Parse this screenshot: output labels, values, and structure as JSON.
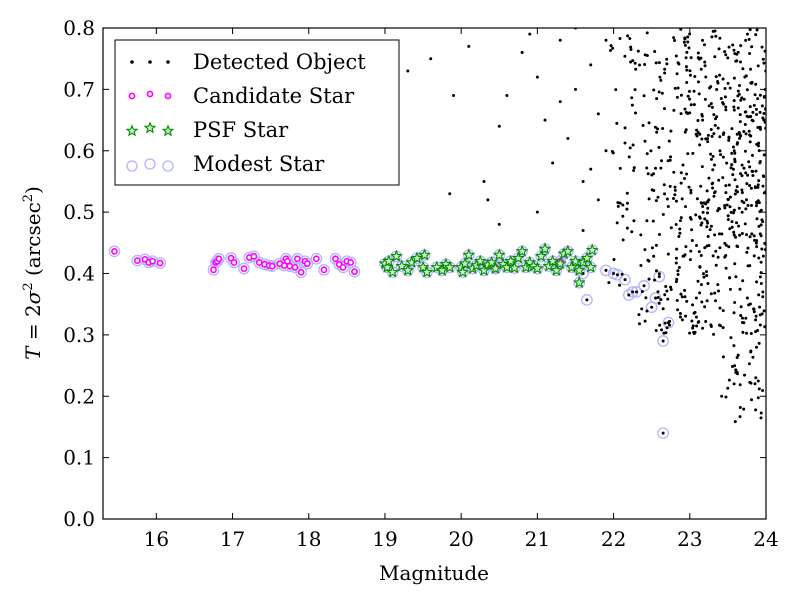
{
  "chart_data": {
    "type": "scatter",
    "xlabel": "Magnitude",
    "ylabel": {
      "prefix": "T",
      "eq": " = 2",
      "sigma": "σ",
      "sup": "2",
      "units_open": " (arcsec",
      "units_sup": "2",
      "units_close": ")"
    },
    "xlim": [
      15.3,
      24
    ],
    "ylim": [
      0.0,
      0.8
    ],
    "xticks": [
      "16",
      "17",
      "18",
      "19",
      "20",
      "21",
      "22",
      "23",
      "24"
    ],
    "yticks": [
      "0.0",
      "0.1",
      "0.2",
      "0.3",
      "0.4",
      "0.5",
      "0.6",
      "0.7",
      "0.8"
    ],
    "grid": false,
    "legend_position": "top-left",
    "legend": [
      {
        "label": "Detected Object",
        "marker": "dot",
        "color": "#000000"
      },
      {
        "label": "Candidate Star",
        "marker": "circle",
        "color": "#ff00ff"
      },
      {
        "label": "PSF Star",
        "marker": "star",
        "color": "#00aa00"
      },
      {
        "label": "Modest Star",
        "marker": "open-circle",
        "color": "#b3b3ff"
      }
    ],
    "series": {
      "detected_extra": [
        [
          20.4,
          0.81
        ],
        [
          20.6,
          0.69
        ],
        [
          20.8,
          0.76
        ],
        [
          20.9,
          0.79
        ],
        [
          21.0,
          0.72
        ],
        [
          21.1,
          0.65
        ],
        [
          21.3,
          0.78
        ],
        [
          21.4,
          0.62
        ],
        [
          21.5,
          0.7
        ],
        [
          21.6,
          0.55
        ],
        [
          21.7,
          0.74
        ],
        [
          21.7,
          0.57
        ],
        [
          21.8,
          0.66
        ],
        [
          21.9,
          0.6
        ],
        [
          21.9,
          0.78
        ],
        [
          21.2,
          0.58
        ],
        [
          21.5,
          0.8
        ],
        [
          20.5,
          0.48
        ],
        [
          20.1,
          0.77
        ],
        [
          19.9,
          0.69
        ],
        [
          19.6,
          0.75
        ],
        [
          20.3,
          0.55
        ],
        [
          20.35,
          0.52
        ],
        [
          19.85,
          0.53
        ],
        [
          19.3,
          0.73
        ],
        [
          20.5,
          0.64
        ],
        [
          21.0,
          0.5
        ],
        [
          21.3,
          0.68
        ],
        [
          21.8,
          0.52
        ],
        [
          21.6,
          0.47
        ]
      ],
      "candidate": [
        [
          15.45,
          0.436
        ],
        [
          15.75,
          0.421
        ],
        [
          15.85,
          0.423
        ],
        [
          15.9,
          0.418
        ],
        [
          15.95,
          0.42
        ],
        [
          16.05,
          0.417
        ],
        [
          16.75,
          0.406
        ],
        [
          16.78,
          0.418
        ],
        [
          16.8,
          0.42
        ],
        [
          16.82,
          0.424
        ],
        [
          16.98,
          0.425
        ],
        [
          17.02,
          0.418
        ],
        [
          17.15,
          0.408
        ],
        [
          17.22,
          0.426
        ],
        [
          17.28,
          0.428
        ],
        [
          17.35,
          0.418
        ],
        [
          17.42,
          0.415
        ],
        [
          17.48,
          0.413
        ],
        [
          17.52,
          0.412
        ],
        [
          17.62,
          0.416
        ],
        [
          17.68,
          0.413
        ],
        [
          17.7,
          0.424
        ],
        [
          17.72,
          0.42
        ],
        [
          17.75,
          0.412
        ],
        [
          17.82,
          0.41
        ],
        [
          17.85,
          0.424
        ],
        [
          17.9,
          0.402
        ],
        [
          17.95,
          0.42
        ],
        [
          17.98,
          0.416
        ],
        [
          18.1,
          0.424
        ],
        [
          18.2,
          0.406
        ],
        [
          18.35,
          0.424
        ],
        [
          18.4,
          0.415
        ],
        [
          18.45,
          0.41
        ],
        [
          18.5,
          0.42
        ],
        [
          18.55,
          0.418
        ],
        [
          18.6,
          0.403
        ],
        [
          20.45,
          0.41
        ],
        [
          21.3,
          0.42
        ]
      ],
      "modest_extra": [
        [
          21.6,
          0.4
        ],
        [
          21.9,
          0.405
        ],
        [
          22.0,
          0.4
        ],
        [
          22.05,
          0.398
        ],
        [
          22.15,
          0.39
        ],
        [
          22.2,
          0.365
        ],
        [
          22.25,
          0.37
        ],
        [
          22.3,
          0.37
        ],
        [
          22.4,
          0.38
        ],
        [
          22.5,
          0.345
        ],
        [
          22.55,
          0.36
        ],
        [
          21.65,
          0.357
        ],
        [
          22.6,
          0.395
        ],
        [
          22.65,
          0.29
        ],
        [
          22.72,
          0.32
        ],
        [
          22.65,
          0.14
        ]
      ],
      "psf": [
        [
          19.0,
          0.416
        ],
        [
          19.03,
          0.41
        ],
        [
          19.05,
          0.42
        ],
        [
          19.1,
          0.402
        ],
        [
          19.15,
          0.428
        ],
        [
          19.22,
          0.412
        ],
        [
          19.3,
          0.405
        ],
        [
          19.35,
          0.418
        ],
        [
          19.42,
          0.425
        ],
        [
          19.5,
          0.41
        ],
        [
          19.52,
          0.43
        ],
        [
          19.55,
          0.402
        ],
        [
          19.68,
          0.41
        ],
        [
          19.75,
          0.405
        ],
        [
          19.8,
          0.415
        ],
        [
          19.85,
          0.41
        ],
        [
          20.0,
          0.41
        ],
        [
          20.02,
          0.402
        ],
        [
          20.05,
          0.416
        ],
        [
          20.1,
          0.43
        ],
        [
          20.15,
          0.408
        ],
        [
          20.2,
          0.413
        ],
        [
          20.25,
          0.42
        ],
        [
          20.3,
          0.405
        ],
        [
          20.35,
          0.414
        ],
        [
          20.4,
          0.418
        ],
        [
          20.45,
          0.408
        ],
        [
          20.5,
          0.43
        ],
        [
          20.55,
          0.415
        ],
        [
          20.6,
          0.41
        ],
        [
          20.65,
          0.42
        ],
        [
          20.7,
          0.409
        ],
        [
          20.75,
          0.425
        ],
        [
          20.8,
          0.436
        ],
        [
          20.85,
          0.41
        ],
        [
          20.9,
          0.418
        ],
        [
          20.95,
          0.412
        ],
        [
          21.0,
          0.408
        ],
        [
          21.05,
          0.428
        ],
        [
          21.1,
          0.44
        ],
        [
          21.15,
          0.412
        ],
        [
          21.2,
          0.42
        ],
        [
          21.25,
          0.405
        ],
        [
          21.3,
          0.416
        ],
        [
          21.35,
          0.432
        ],
        [
          21.4,
          0.436
        ],
        [
          21.45,
          0.41
        ],
        [
          21.5,
          0.42
        ],
        [
          21.55,
          0.405
        ],
        [
          21.6,
          0.418
        ],
        [
          21.65,
          0.425
        ],
        [
          21.7,
          0.41
        ],
        [
          21.72,
          0.438
        ],
        [
          21.55,
          0.385
        ]
      ]
    }
  }
}
